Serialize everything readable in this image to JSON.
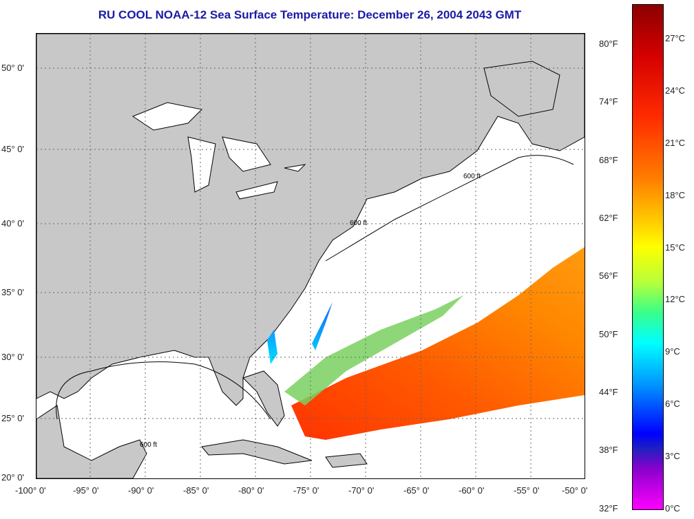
{
  "title": "RU COOL  NOAA-12  Sea Surface Temperature:  December 26, 2004 2043 GMT",
  "axes": {
    "lat_labels": [
      "50° 0'",
      "45° 0'",
      "40° 0'",
      "35° 0'",
      "30° 0'",
      "25° 0'",
      "20° 0'"
    ],
    "lon_labels": [
      "-100° 0'",
      "-95° 0'",
      "-90° 0'",
      "-85° 0'",
      "-80° 0'",
      "-75° 0'",
      "-70° 0'",
      "-65° 0'",
      "-60° 0'",
      "-55° 0'",
      "-50° 0'"
    ]
  },
  "map": {
    "contour_label": "600 ft",
    "colors": {
      "land": "#c8c8c8",
      "ocean_no_data": "#ffffff",
      "coast": "#000000"
    }
  },
  "colorbar": {
    "fahrenheit": [
      "80°F",
      "74°F",
      "68°F",
      "62°F",
      "56°F",
      "50°F",
      "44°F",
      "38°F",
      "32°F"
    ],
    "celsius": [
      "27°C",
      "24°C",
      "21°C",
      "18°C",
      "15°C",
      "12°C",
      "9°C",
      "6°C",
      "3°C",
      "0°C"
    ]
  }
}
